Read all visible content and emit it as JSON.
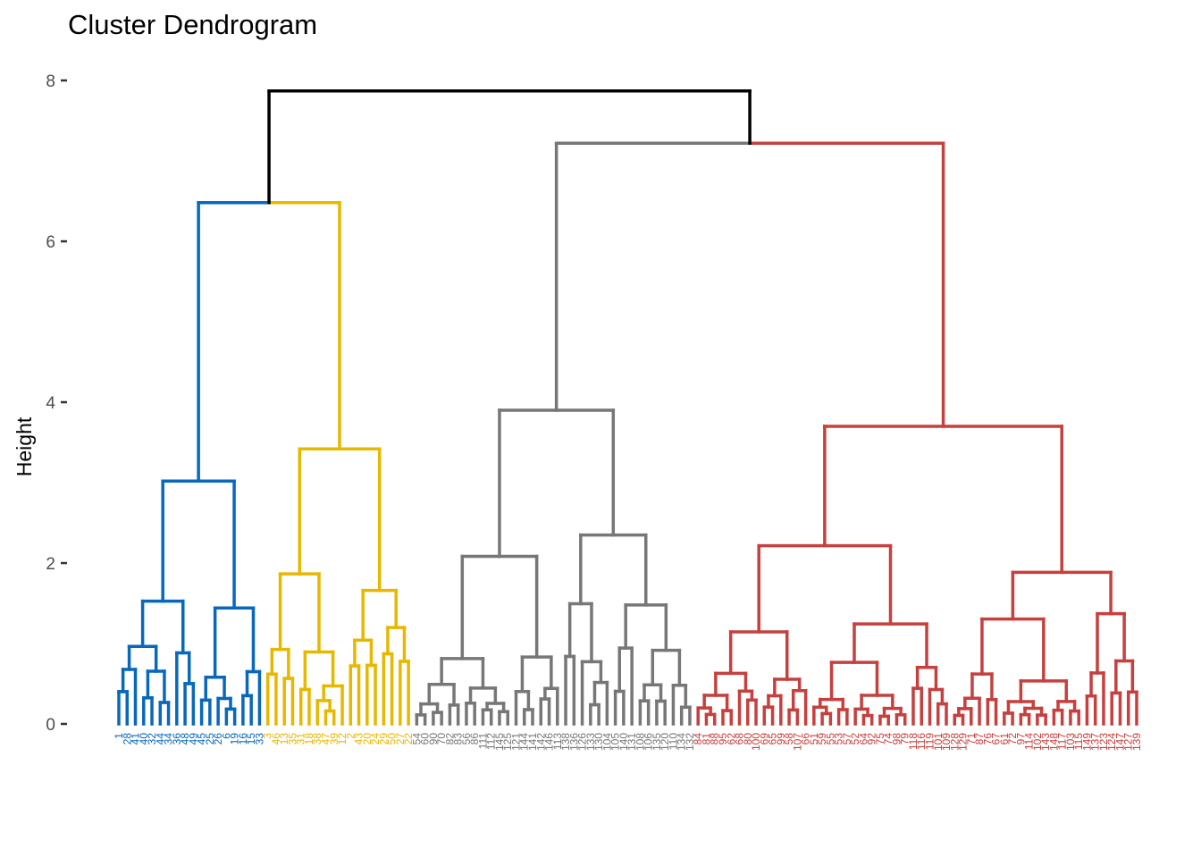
{
  "chart_data": {
    "type": "dendrogram",
    "title": "Cluster Dendrogram",
    "xlabel": "",
    "ylabel": "Height",
    "ylim": [
      0,
      8.3
    ],
    "y_ticks": [
      0,
      2,
      4,
      6,
      8
    ],
    "grid": false,
    "merges": [
      {
        "height": 7.87,
        "clusters": [
          "blue+yellow",
          "grey+red"
        ]
      },
      {
        "height": 7.22,
        "clusters": [
          "grey",
          "red"
        ]
      },
      {
        "height": 6.48,
        "clusters": [
          "blue",
          "yellow"
        ]
      }
    ],
    "clusters": [
      {
        "name": "1",
        "color": "#0868BB",
        "merge_height": 3.02,
        "leaves": [
          "1",
          "28",
          "41",
          "40",
          "32",
          "44",
          "34",
          "36",
          "48",
          "49",
          "45",
          "25",
          "26",
          "6",
          "19",
          "16",
          "15",
          "33"
        ]
      },
      {
        "name": "2",
        "color": "#E7B800",
        "merge_height": 3.42,
        "leaves": [
          "3",
          "46",
          "13",
          "35",
          "31",
          "18",
          "38",
          "47",
          "39",
          "12",
          "2",
          "43",
          "20",
          "24",
          "29",
          "50",
          "27",
          "22"
        ]
      },
      {
        "name": "3",
        "color": "#777777",
        "merge_height": 3.9,
        "leaves": [
          "54",
          "60",
          "90",
          "70",
          "82",
          "83",
          "56",
          "86",
          "111",
          "112",
          "145",
          "125",
          "121",
          "144",
          "141",
          "142",
          "146",
          "113",
          "138",
          "136",
          "126",
          "133",
          "130",
          "104",
          "105",
          "140",
          "131",
          "108",
          "106",
          "135",
          "120",
          "110",
          "134",
          "132"
        ]
      },
      {
        "name": "4",
        "color": "#C6403E",
        "merge_height": 3.7,
        "leaves": [
          "84",
          "81",
          "88",
          "95",
          "62",
          "68",
          "80",
          "100",
          "69",
          "65",
          "99",
          "58",
          "107",
          "66",
          "51",
          "59",
          "55",
          "53",
          "57",
          "52",
          "64",
          "92",
          "75",
          "74",
          "98",
          "79",
          "118",
          "116",
          "119",
          "101",
          "109",
          "128",
          "129",
          "71",
          "87",
          "76",
          "67",
          "61",
          "72",
          "97",
          "114",
          "102",
          "143",
          "148",
          "117",
          "103",
          "115",
          "149",
          "137",
          "123",
          "124",
          "147",
          "127",
          "139"
        ]
      }
    ]
  }
}
